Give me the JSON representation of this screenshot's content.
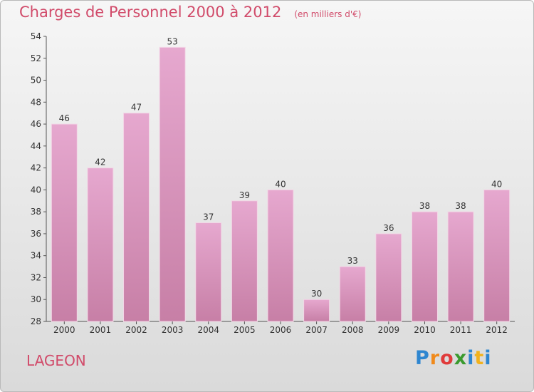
{
  "header": {
    "title": "Charges de Personnel 2000 à 2012",
    "unit": "(en milliers d'€)"
  },
  "footer": {
    "municipality": "LAGEON",
    "logo": [
      "P",
      "r",
      "o",
      "x",
      "i",
      "t",
      "i"
    ]
  },
  "colors": {
    "bar": "#c77fa6",
    "bar_light": "#e6a8cf",
    "accent": "#d14b6a"
  },
  "chart_data": {
    "type": "bar",
    "title": "Charges de Personnel 2000 à 2012",
    "subtitle": "(en milliers d'€)",
    "categories": [
      "2000",
      "2001",
      "2002",
      "2003",
      "2004",
      "2005",
      "2006",
      "2007",
      "2008",
      "2009",
      "2010",
      "2011",
      "2012"
    ],
    "values": [
      46,
      42,
      47,
      53,
      37,
      39,
      40,
      30,
      33,
      36,
      38,
      38,
      40
    ],
    "ylim": [
      28,
      54
    ],
    "yticks": [
      28,
      30,
      32,
      34,
      36,
      38,
      40,
      42,
      44,
      46,
      48,
      50,
      52,
      54
    ],
    "grid": false,
    "xlabel": "",
    "ylabel": ""
  }
}
